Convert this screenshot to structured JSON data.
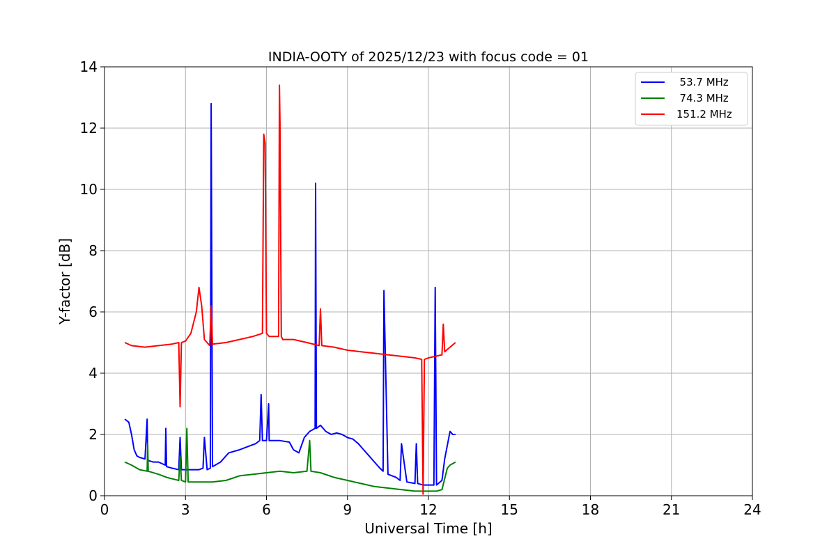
{
  "chart_data": {
    "type": "line",
    "title": "INDIA-OOTY of 2025/12/23 with focus code = 01",
    "xlabel": "Universal Time [h]",
    "ylabel": "Y-factor [dB]",
    "xlim": [
      0,
      24
    ],
    "ylim": [
      0,
      14
    ],
    "xticks": [
      0,
      3,
      6,
      9,
      12,
      15,
      18,
      21,
      24
    ],
    "yticks": [
      0,
      2,
      4,
      6,
      8,
      10,
      12,
      14
    ],
    "grid": true,
    "legend_position": "top-right",
    "series": [
      {
        "name": "  53.7 MHz",
        "color": "#0000ff",
        "x": [
          0.75,
          0.9,
          1.0,
          1.1,
          1.2,
          1.3,
          1.5,
          1.58,
          1.6,
          1.62,
          1.8,
          2.0,
          2.25,
          2.27,
          2.3,
          2.5,
          2.75,
          2.8,
          2.85,
          3.0,
          3.5,
          3.65,
          3.7,
          3.8,
          3.92,
          3.95,
          4.0,
          4.3,
          4.6,
          5.0,
          5.3,
          5.6,
          5.75,
          5.8,
          5.85,
          6.0,
          6.08,
          6.1,
          6.5,
          6.85,
          7.0,
          7.2,
          7.4,
          7.6,
          7.8,
          7.82,
          7.85,
          8.0,
          8.2,
          8.4,
          8.6,
          8.8,
          9.0,
          9.2,
          9.4,
          9.6,
          9.8,
          10.0,
          10.2,
          10.32,
          10.35,
          10.5,
          10.8,
          10.95,
          11.0,
          11.2,
          11.5,
          11.55,
          11.6,
          11.8,
          12.0,
          12.2,
          12.25,
          12.3,
          12.5,
          12.6,
          12.8,
          12.9,
          13.0
        ],
        "y": [
          2.5,
          2.4,
          2.0,
          1.5,
          1.3,
          1.25,
          1.2,
          2.5,
          1.2,
          1.15,
          1.1,
          1.1,
          1.0,
          2.2,
          0.95,
          0.9,
          0.85,
          1.9,
          0.85,
          0.85,
          0.85,
          0.9,
          1.9,
          0.85,
          0.9,
          12.8,
          0.95,
          1.1,
          1.4,
          1.5,
          1.6,
          1.7,
          1.8,
          3.3,
          1.8,
          1.8,
          3.0,
          1.8,
          1.8,
          1.75,
          1.5,
          1.4,
          1.9,
          2.1,
          2.2,
          10.2,
          2.2,
          2.3,
          2.1,
          2.0,
          2.05,
          2.0,
          1.9,
          1.85,
          1.7,
          1.5,
          1.3,
          1.1,
          0.9,
          0.8,
          6.7,
          0.7,
          0.6,
          0.5,
          1.7,
          0.45,
          0.4,
          1.7,
          0.4,
          0.35,
          0.35,
          0.35,
          6.8,
          0.35,
          0.5,
          1.2,
          2.1,
          2.0,
          2.0
        ]
      },
      {
        "name": "  74.3 MHz",
        "color": "#008000",
        "x": [
          0.75,
          1.0,
          1.3,
          1.58,
          1.6,
          1.62,
          2.0,
          2.3,
          2.75,
          2.8,
          2.85,
          3.0,
          3.05,
          3.1,
          3.5,
          4.0,
          4.5,
          5.0,
          5.5,
          6.0,
          6.5,
          7.0,
          7.5,
          7.6,
          7.65,
          8.0,
          8.5,
          9.0,
          9.5,
          10.0,
          10.5,
          11.0,
          11.5,
          12.0,
          12.3,
          12.5,
          12.7,
          12.8,
          13.0
        ],
        "y": [
          1.1,
          1.0,
          0.85,
          0.8,
          1.7,
          0.8,
          0.7,
          0.6,
          0.5,
          1.3,
          0.5,
          0.45,
          2.2,
          0.45,
          0.45,
          0.45,
          0.5,
          0.65,
          0.7,
          0.75,
          0.8,
          0.75,
          0.8,
          1.8,
          0.8,
          0.75,
          0.6,
          0.5,
          0.4,
          0.3,
          0.25,
          0.2,
          0.15,
          0.15,
          0.15,
          0.2,
          0.9,
          1.0,
          1.1
        ]
      },
      {
        "name": "151.2 MHz",
        "color": "#ff0000",
        "x": [
          0.75,
          1.0,
          1.5,
          2.0,
          2.5,
          2.75,
          2.8,
          2.85,
          3.0,
          3.2,
          3.4,
          3.5,
          3.6,
          3.7,
          3.9,
          3.95,
          4.0,
          4.5,
          5.0,
          5.5,
          5.85,
          5.9,
          5.95,
          6.0,
          6.1,
          6.45,
          6.48,
          6.5,
          6.55,
          6.6,
          7.0,
          7.5,
          7.95,
          8.0,
          8.05,
          8.5,
          9.0,
          9.5,
          10.0,
          10.5,
          11.0,
          11.5,
          11.75,
          11.8,
          11.85,
          12.0,
          12.5,
          12.55,
          12.6,
          13.0
        ],
        "y": [
          5.0,
          4.9,
          4.85,
          4.9,
          4.95,
          5.0,
          2.9,
          5.0,
          5.05,
          5.3,
          6.0,
          6.8,
          6.2,
          5.1,
          4.9,
          6.2,
          4.95,
          5.0,
          5.1,
          5.2,
          5.3,
          11.8,
          11.5,
          5.3,
          5.2,
          5.2,
          13.4,
          12.2,
          5.2,
          5.1,
          5.1,
          5.0,
          4.9,
          6.1,
          4.9,
          4.85,
          4.75,
          4.7,
          4.65,
          4.6,
          4.55,
          4.5,
          4.45,
          0.05,
          4.45,
          4.5,
          4.6,
          5.6,
          4.7,
          5.0
        ]
      }
    ]
  }
}
